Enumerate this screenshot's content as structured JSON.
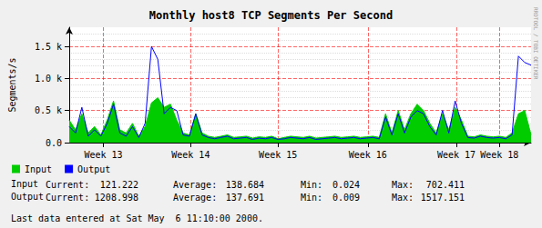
{
  "chart_data": {
    "type": "line",
    "title": "Monthly host8 TCP Segments Per Second",
    "y_label": "Segments/s",
    "x": [
      0,
      0.5,
      1,
      1.5,
      2,
      2.5,
      3,
      3.5,
      4,
      4.5,
      5,
      5.5,
      6,
      6.5,
      7,
      7.5,
      8,
      8.5,
      9,
      9.5,
      10,
      10.5,
      11,
      11.5,
      12,
      12.5,
      13,
      13.5,
      14,
      14.5,
      15,
      15.5,
      16,
      16.5,
      17,
      17.5,
      18,
      18.5,
      19,
      19.5,
      20,
      20.5,
      21,
      21.5,
      22,
      22.5,
      23,
      23.5,
      24,
      24.5,
      25,
      25.5,
      26,
      26.5,
      27,
      27.5,
      28,
      28.5,
      29,
      29.5,
      30,
      30.5,
      31,
      31.5,
      32,
      32.5,
      33,
      33.5,
      34,
      34.5,
      35,
      35.5,
      36,
      36.5
    ],
    "series": [
      {
        "name": "Input",
        "type": "area",
        "color": "#00cc00",
        "values": [
          350,
          200,
          450,
          150,
          250,
          120,
          350,
          650,
          200,
          150,
          300,
          100,
          250,
          620,
          700,
          550,
          600,
          350,
          150,
          120,
          450,
          150,
          100,
          80,
          100,
          120,
          80,
          90,
          100,
          70,
          90,
          80,
          100,
          60,
          80,
          100,
          90,
          80,
          100,
          70,
          80,
          90,
          100,
          80,
          90,
          100,
          80,
          90,
          100,
          80,
          450,
          150,
          500,
          200,
          450,
          600,
          500,
          300,
          150,
          450,
          200,
          550,
          350,
          100,
          90,
          120,
          100,
          90,
          100,
          80,
          150,
          450,
          500,
          121
        ],
        "stats": [
          121.222,
          138.684,
          0.024,
          702.411
        ]
      },
      {
        "name": "Output",
        "type": "line",
        "color": "#0000ff",
        "values": [
          250,
          150,
          550,
          100,
          200,
          100,
          300,
          600,
          150,
          100,
          250,
          80,
          300,
          1500,
          1300,
          450,
          550,
          500,
          120,
          100,
          450,
          120,
          80,
          60,
          80,
          100,
          60,
          70,
          80,
          50,
          70,
          60,
          80,
          50,
          60,
          80,
          70,
          60,
          80,
          50,
          60,
          70,
          80,
          60,
          70,
          80,
          60,
          70,
          80,
          60,
          400,
          120,
          450,
          150,
          400,
          500,
          450,
          250,
          120,
          500,
          150,
          650,
          300,
          80,
          70,
          100,
          80,
          70,
          80,
          60,
          120,
          1350,
          1250,
          1209
        ],
        "stats": [
          1208.998,
          137.691,
          0.009,
          1517.151
        ]
      }
    ],
    "stats_labels": [
      "Current:",
      "Average:",
      "Min:",
      "Max:"
    ],
    "xlim": [
      0,
      36.5
    ],
    "xticks": [
      {
        "value": 2.7,
        "label": "Week 13"
      },
      {
        "value": 9.6,
        "label": "Week 14"
      },
      {
        "value": 16.5,
        "label": "Week 15"
      },
      {
        "value": 23.6,
        "label": "Week 16"
      },
      {
        "value": 30.6,
        "label": "Week 17"
      },
      {
        "value": 34.0,
        "label": "Week 18"
      }
    ],
    "ylim": [
      0,
      1800
    ],
    "yticks": [
      {
        "value": 0,
        "label": "0.0"
      },
      {
        "value": 500,
        "label": "0.5 k"
      },
      {
        "value": 1000,
        "label": "1.0 k"
      },
      {
        "value": 1500,
        "label": "1.5 k"
      }
    ],
    "grid": true,
    "legend": "bottom-left",
    "annotations": {
      "watermark": "RRDTOOL / TOBI OETIKER",
      "footer": "Last data entered at Sat May  6 11:10:00 2000."
    }
  }
}
